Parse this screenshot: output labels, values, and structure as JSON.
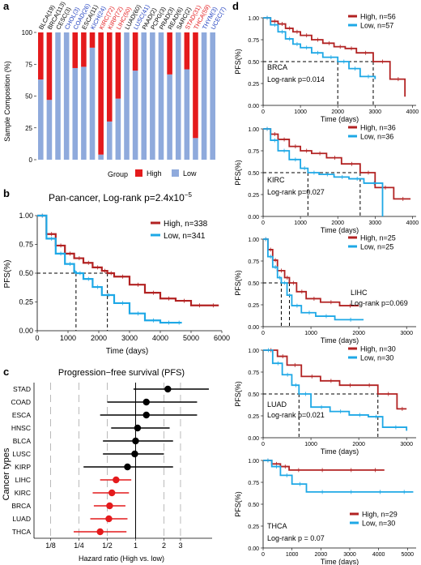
{
  "colors": {
    "high": "#e41a1c",
    "low": "#8faadc",
    "km_high": "#b22222",
    "km_low": "#1ea8e6",
    "forest_sig": "#e41a1c",
    "forest_ns": "#000000"
  },
  "panels": {
    "a": {
      "letter": "a",
      "ylabel": "Sample Composition (%)",
      "yticks": [
        "0",
        "25",
        "50",
        "75",
        "100"
      ],
      "legend_title": "Group",
      "legend_items": [
        "High",
        "Low"
      ]
    },
    "b": {
      "letter": "b",
      "title": "Pan-cancer, Log-rank p=2.4x10",
      "title_exp": "−5",
      "ylabel": "PFS(%)",
      "xlabel": "Time (days)",
      "xticks": [
        "0",
        "1000",
        "2000",
        "3000",
        "4000",
        "5000",
        "6000"
      ],
      "yticks": [
        "0.00",
        "0.25",
        "0.50",
        "0.75",
        "1.00"
      ],
      "legend": [
        "High, n=338",
        "Low, n=341"
      ]
    },
    "c": {
      "letter": "c",
      "title": "Progression−free survival (PFS)",
      "ylabel": "Cancer types",
      "xlabel": "Hazard ratio (High vs. low)",
      "xticks": [
        "1/8",
        "1/4",
        "1/2",
        "1",
        "2",
        "3"
      ]
    },
    "d": {
      "letter": "d",
      "ylabel": "PFS(%)",
      "xlabel": "Time (days)",
      "yticks": [
        "0.00",
        "0.25",
        "0.50",
        "0.75",
        "1.00"
      ]
    }
  },
  "chart_data": [
    {
      "type": "bar",
      "panel": "a",
      "stacked": true,
      "ylabel": "Sample Composition (%)",
      "ylim": [
        0,
        100
      ],
      "categories": [
        "BLCA(19)",
        "BRCA(113)",
        "CESC(3)",
        "CHOL(3)",
        "COAD(26)",
        "ESCA(11)",
        "KICH(24)",
        "KIRC(72)",
        "KIRP(72)",
        "LIHC(50)",
        "LUAD(60)",
        "LUSC(41)",
        "PAAD(2)",
        "PCPG(3)",
        "PRAD(3)",
        "READ(6)",
        "SARC(2)",
        "STAD(31)",
        "THCA(59)",
        "THYM(3)",
        "UCEC(7)"
      ],
      "label_colors": [
        "black",
        "black",
        "black",
        "blue",
        "blue",
        "black",
        "blue",
        "red",
        "red",
        "red",
        "black",
        "blue",
        "black",
        "black",
        "black",
        "black",
        "black",
        "red",
        "red",
        "blue",
        "blue"
      ],
      "series": [
        {
          "name": "High",
          "values": [
            37,
            53,
            0,
            0,
            28,
            27,
            12,
            96,
            70,
            52,
            0,
            30,
            0,
            0,
            0,
            33,
            0,
            29,
            83,
            0,
            0
          ]
        },
        {
          "name": "Low",
          "values": [
            63,
            47,
            100,
            100,
            72,
            73,
            88,
            4,
            30,
            48,
            100,
            70,
            100,
            100,
            100,
            67,
            100,
            71,
            17,
            100,
            100
          ]
        }
      ],
      "legend": [
        "High",
        "Low"
      ],
      "legend_position": "bottom"
    },
    {
      "type": "line",
      "panel": "b",
      "title": "Pan-cancer, Log-rank p=2.4x10−5",
      "xlabel": "Time (days)",
      "ylabel": "PFS(%)",
      "xlim": [
        0,
        6000
      ],
      "ylim": [
        0,
        1
      ],
      "series": [
        {
          "name": "High, n=338",
          "x": [
            0,
            300,
            600,
            900,
            1200,
            1500,
            1800,
            2100,
            2280,
            2500,
            3000,
            3500,
            4000,
            4500,
            5000,
            5500,
            5900
          ],
          "y": [
            1.0,
            0.84,
            0.74,
            0.67,
            0.63,
            0.59,
            0.55,
            0.52,
            0.5,
            0.47,
            0.4,
            0.33,
            0.28,
            0.26,
            0.22,
            0.22,
            0.22
          ]
        },
        {
          "name": "Low, n=341",
          "x": [
            0,
            300,
            600,
            900,
            1200,
            1260,
            1500,
            1800,
            2100,
            2500,
            3000,
            3500,
            4000,
            4500,
            4700
          ],
          "y": [
            1.0,
            0.8,
            0.67,
            0.58,
            0.51,
            0.5,
            0.45,
            0.38,
            0.31,
            0.24,
            0.15,
            0.09,
            0.07,
            0.07,
            0.07
          ]
        }
      ],
      "legend_position": "top-right"
    },
    {
      "type": "scatter",
      "panel": "c",
      "title": "Progression−free survival (PFS)",
      "xlabel": "Hazard ratio (High vs. low)",
      "ylabel": "Cancer types",
      "xscale": "log2",
      "categories": [
        "STAD",
        "COAD",
        "ESCA",
        "HNSC",
        "BLCA",
        "LUSC",
        "KIRP",
        "LIHC",
        "KIRC",
        "BRCA",
        "LUAD",
        "THCA"
      ],
      "hr": [
        2.2,
        1.3,
        1.3,
        1.05,
        1.0,
        0.98,
        0.82,
        0.62,
        0.56,
        0.53,
        0.52,
        0.42
      ],
      "ci_low": [
        0.95,
        0.5,
        0.42,
        0.55,
        0.45,
        0.45,
        0.28,
        0.42,
        0.35,
        0.36,
        0.33,
        0.22
      ],
      "ci_high": [
        6.0,
        4.5,
        4.5,
        2.3,
        2.5,
        2.0,
        2.5,
        0.9,
        0.85,
        0.78,
        0.82,
        0.8
      ],
      "significant": [
        false,
        false,
        false,
        false,
        false,
        false,
        false,
        true,
        true,
        true,
        true,
        true
      ]
    },
    {
      "type": "line",
      "panel": "d",
      "panels": [
        {
          "cancer": "BRCA",
          "pvalue": "Log-rank p=0.014",
          "xticks": [
            "0",
            "1000",
            "2000",
            "3000",
            "4000"
          ],
          "xlim": [
            0,
            4100
          ],
          "median": [
            2000,
            2950
          ],
          "series": [
            {
              "name": "High, n=56",
              "x": [
                0,
                200,
                400,
                600,
                800,
                1000,
                1300,
                1600,
                1900,
                2200,
                2500,
                2950,
                3400,
                3800
              ],
              "y": [
                1.0,
                0.96,
                0.93,
                0.88,
                0.84,
                0.8,
                0.75,
                0.71,
                0.67,
                0.65,
                0.6,
                0.5,
                0.3,
                0.1
              ]
            },
            {
              "name": "Low, n=57",
              "x": [
                0,
                200,
                400,
                600,
                800,
                1000,
                1300,
                1600,
                2000,
                2300,
                2600,
                3000
              ],
              "y": [
                1.0,
                0.92,
                0.84,
                0.76,
                0.7,
                0.66,
                0.6,
                0.55,
                0.5,
                0.42,
                0.33,
                0.3
              ]
            }
          ]
        },
        {
          "cancer": "KIRC",
          "pvalue": "Log-rank p=0.027",
          "xticks": [
            "0",
            "1000",
            "2000",
            "3000",
            "4000"
          ],
          "xlim": [
            0,
            4100
          ],
          "median": [
            1200,
            2600
          ],
          "series": [
            {
              "name": "High, n=36",
              "x": [
                0,
                200,
                400,
                700,
                1000,
                1300,
                1700,
                2100,
                2600,
                3000,
                3500,
                3950
              ],
              "y": [
                1.0,
                0.94,
                0.88,
                0.8,
                0.75,
                0.72,
                0.67,
                0.6,
                0.5,
                0.33,
                0.2,
                0.2
              ]
            },
            {
              "name": "Low, n=36",
              "x": [
                0,
                200,
                400,
                700,
                1000,
                1200,
                1500,
                1900,
                2300,
                2700,
                3200
              ],
              "y": [
                1.0,
                0.87,
                0.75,
                0.65,
                0.55,
                0.5,
                0.48,
                0.45,
                0.43,
                0.38,
                0.0
              ]
            }
          ]
        },
        {
          "cancer": "LIHC",
          "pvalue": "Log-rank p=0.069",
          "xticks": [
            "0",
            "1000",
            "2000",
            "3000"
          ],
          "xlim": [
            0,
            3200
          ],
          "median": [
            380,
            550
          ],
          "series": [
            {
              "name": "High, n=25",
              "x": [
                0,
                100,
                200,
                300,
                450,
                550,
                700,
                900,
                1200,
                1600,
                2000
              ],
              "y": [
                1.0,
                0.88,
                0.76,
                0.64,
                0.56,
                0.5,
                0.4,
                0.32,
                0.28,
                0.24,
                0.24
              ]
            },
            {
              "name": "Low, n=25",
              "x": [
                0,
                100,
                200,
                300,
                380,
                500,
                600,
                800,
                1100,
                1500,
                2100
              ],
              "y": [
                1.0,
                0.8,
                0.68,
                0.56,
                0.5,
                0.36,
                0.24,
                0.16,
                0.12,
                0.08,
                0.08
              ]
            }
          ]
        },
        {
          "cancer": "LUAD",
          "pvalue": "Log-rank p=0.021",
          "xticks": [
            "0",
            "1000",
            "2000",
            "3000"
          ],
          "xlim": [
            0,
            3200
          ],
          "median": [
            750,
            2400
          ],
          "series": [
            {
              "name": "High, n=30",
              "x": [
                0,
                300,
                500,
                800,
                1200,
                1600,
                2000,
                2400,
                2800,
                3000
              ],
              "y": [
                1.0,
                0.93,
                0.83,
                0.7,
                0.65,
                0.6,
                0.6,
                0.5,
                0.33,
                0.33
              ]
            },
            {
              "name": "Low, n=30",
              "x": [
                0,
                200,
                400,
                600,
                750,
                1000,
                1400,
                1800,
                2200,
                2500,
                3000
              ],
              "y": [
                1.0,
                0.85,
                0.72,
                0.6,
                0.5,
                0.35,
                0.3,
                0.26,
                0.24,
                0.12,
                0.08
              ]
            }
          ]
        },
        {
          "cancer": "THCA",
          "pvalue": "Log-rank p = 0.07",
          "xticks": [
            "0",
            "1000",
            "2000",
            "3000",
            "4000",
            "5000"
          ],
          "xlim": [
            0,
            5300
          ],
          "median": [],
          "series": [
            {
              "name": "High, n=29",
              "x": [
                0,
                300,
                600,
                900,
                1500,
                2500,
                3500,
                4200
              ],
              "y": [
                1.0,
                0.96,
                0.93,
                0.89,
                0.89,
                0.89,
                0.89,
                0.89
              ]
            },
            {
              "name": "Low, n=30",
              "x": [
                0,
                300,
                600,
                1000,
                1500,
                2500,
                3500,
                4500,
                5200
              ],
              "y": [
                1.0,
                0.93,
                0.83,
                0.73,
                0.64,
                0.64,
                0.64,
                0.64,
                0.64
              ]
            }
          ]
        }
      ]
    }
  ]
}
